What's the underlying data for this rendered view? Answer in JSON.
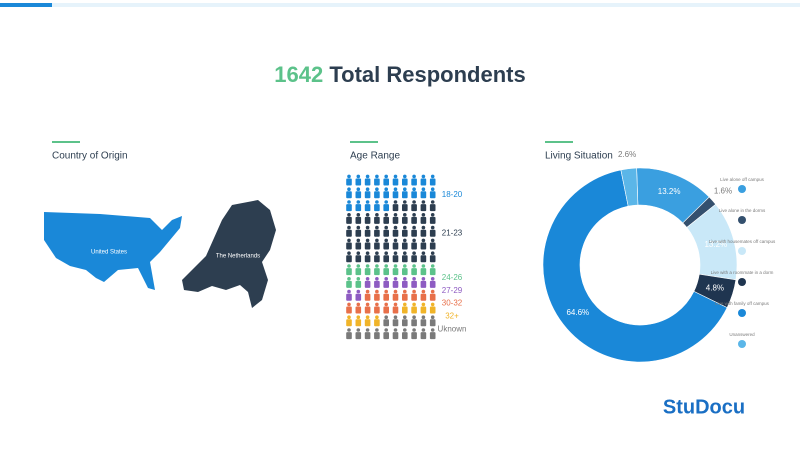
{
  "title": {
    "count": "1642",
    "text": "Total Respondents"
  },
  "country": {
    "heading": "Country of Origin",
    "labels": [
      "United States",
      "The Netherlands"
    ]
  },
  "age": {
    "heading": "Age Range",
    "groups": [
      {
        "label": "18-20",
        "color": "#1a88d8",
        "icons": 25
      },
      {
        "label": "21-23",
        "color": "#2d3e50",
        "icons": 45
      },
      {
        "label": "24-26",
        "color": "#5cc28a",
        "icons": 12
      },
      {
        "label": "27-29",
        "color": "#8e5cc2",
        "icons": 10
      },
      {
        "label": "30-32",
        "color": "#e8704a",
        "icons": 14
      },
      {
        "label": "32+",
        "color": "#f0b429",
        "icons": 8
      },
      {
        "label": "Uknown",
        "color": "#7a7a7a",
        "icons": 16
      }
    ]
  },
  "chart_data": {
    "type": "pie",
    "title": "Living Situation",
    "categories": [
      "Live alone off campus",
      "Live alone in the dorms",
      "Live with housemates off campus",
      "Live with a roommate in a dorm",
      "Live with family off campus",
      "Unanswered"
    ],
    "values": [
      13.2,
      1.6,
      13.2,
      4.8,
      64.6,
      2.6
    ],
    "value_labels": [
      "13.2%",
      "1.6%",
      "13.2%",
      "4.8%",
      "64.6%",
      "2.6%"
    ],
    "colors": [
      "#3a9fe0",
      "#34506e",
      "#c9e8f8",
      "#1f3550",
      "#1a88d8",
      "#5bb6e8"
    ]
  },
  "logo": "StuDocu"
}
